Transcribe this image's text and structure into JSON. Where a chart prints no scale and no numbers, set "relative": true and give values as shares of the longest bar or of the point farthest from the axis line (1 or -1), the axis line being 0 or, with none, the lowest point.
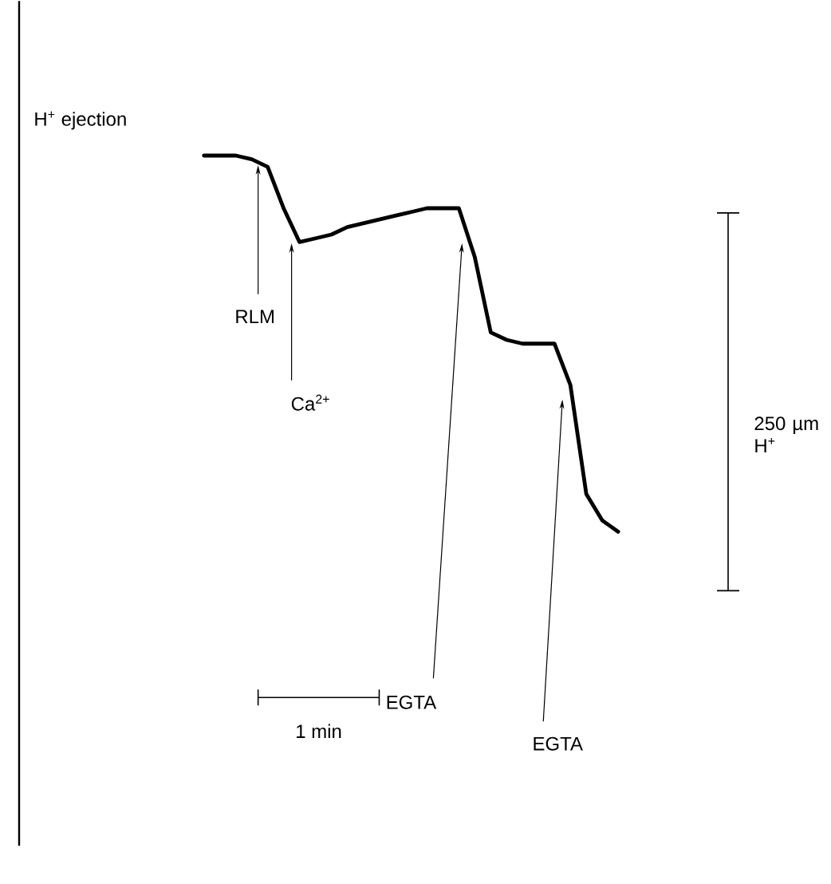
{
  "chart_data": {
    "type": "line",
    "relative": true,
    "color": "#000000",
    "categories": [
      null,
      null,
      null,
      null,
      null,
      null,
      null,
      null,
      null,
      null,
      null,
      null,
      null,
      null,
      null,
      null,
      null,
      null,
      null,
      null,
      null,
      null,
      null,
      null,
      null,
      null,
      null
    ],
    "values": [
      1.0,
      1.0,
      1.0,
      0.99,
      0.97,
      0.86,
      0.77,
      0.78,
      0.79,
      0.81,
      0.82,
      0.83,
      0.84,
      0.85,
      0.86,
      0.86,
      0.86,
      0.73,
      0.53,
      0.51,
      0.5,
      0.5,
      0.5,
      0.39,
      0.1,
      0.03,
      0
    ],
    "annotations": [
      "H$^{+}$ ejection",
      "RLM",
      "Ca$^{2+}$",
      "EGTA",
      "EGTA",
      "250 µm H$^{+}$",
      "1 min"
    ]
  }
}
